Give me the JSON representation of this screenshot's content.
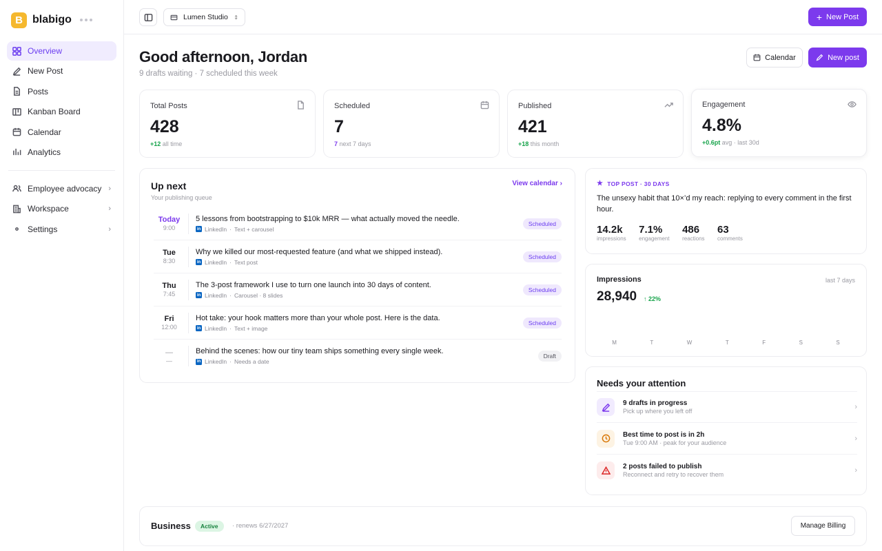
{
  "brand": {
    "name": "blabigo",
    "logo_letter": "B"
  },
  "sidebar": {
    "items": [
      {
        "label": "Overview",
        "icon": "grid-icon",
        "active": true
      },
      {
        "label": "New Post",
        "icon": "pen-icon"
      },
      {
        "label": "Posts",
        "icon": "document-icon"
      },
      {
        "label": "Kanban Board",
        "icon": "kanban-icon"
      },
      {
        "label": "Calendar",
        "icon": "calendar-icon"
      },
      {
        "label": "Analytics",
        "icon": "bar-chart-icon"
      }
    ],
    "groups": [
      {
        "label": "Employee advocacy",
        "icon": "people-icon"
      },
      {
        "label": "Workspace",
        "icon": "building-icon"
      },
      {
        "label": "Settings",
        "icon": "dot-icon"
      }
    ]
  },
  "topbar": {
    "workspace": "Lumen Studio",
    "new_post": "New Post"
  },
  "header": {
    "greeting": "Good afternoon, Jordan",
    "subtitle": "9 drafts waiting · 7 scheduled this week",
    "calendar_btn": "Calendar",
    "new_post_btn": "New post"
  },
  "stats": [
    {
      "label": "Total Posts",
      "value": "428",
      "delta": "+12",
      "delta_note": "all time",
      "icon": "file-icon"
    },
    {
      "label": "Scheduled",
      "value": "7",
      "delta": "7",
      "delta_note": "next 7 days",
      "icon": "calendar-icon"
    },
    {
      "label": "Published",
      "value": "421",
      "delta": "+18",
      "delta_note": "this month",
      "icon": "trend-up-icon"
    },
    {
      "label": "Engagement",
      "value": "4.8%",
      "delta": "+0.6pt",
      "delta_note": "avg · last 30d",
      "icon": "eye-icon"
    }
  ],
  "up_next": {
    "title": "Up next",
    "subtitle": "Your publishing queue",
    "view_calendar": "View calendar",
    "platform": "LinkedIn",
    "rows": [
      {
        "day": "Today",
        "time": "9:00",
        "title": "5 lessons from bootstrapping to $10k MRR — what actually moved the needle.",
        "meta": "Text + carousel",
        "status": "Scheduled"
      },
      {
        "day": "Tue",
        "time": "8:30",
        "title": "Why we killed our most-requested feature (and what we shipped instead).",
        "meta": "Text post",
        "status": "Scheduled"
      },
      {
        "day": "Thu",
        "time": "7:45",
        "title": "The 3-post framework I use to turn one launch into 30 days of content.",
        "meta": "Carousel · 8 slides",
        "status": "Scheduled"
      },
      {
        "day": "Fri",
        "time": "12:00",
        "title": "Hot take: your hook matters more than your whole post. Here is the data.",
        "meta": "Text + image",
        "status": "Scheduled"
      },
      {
        "day": "—",
        "time": "—",
        "title": "Behind the scenes: how our tiny team ships something every single week.",
        "meta": "Needs a date",
        "status": "Draft"
      }
    ]
  },
  "top_post": {
    "label": "TOP POST · 30 DAYS",
    "text": "The unsexy habit that 10×’d my reach: replying to every comment in the first hour.",
    "metrics": [
      {
        "value": "14.2k",
        "label": "impressions"
      },
      {
        "value": "7.1%",
        "label": "engagement"
      },
      {
        "value": "486",
        "label": "reactions"
      },
      {
        "value": "63",
        "label": "comments"
      }
    ]
  },
  "impressions": {
    "title": "Impressions",
    "period": "last 7 days",
    "value": "28,940",
    "change": "22%",
    "days": [
      "M",
      "T",
      "W",
      "T",
      "F",
      "S",
      "S"
    ]
  },
  "attention": {
    "title": "Needs your attention",
    "items": [
      {
        "title": "9 drafts in progress",
        "sub": "Pick up where you left off",
        "icon": "pen-icon",
        "color": "#7c3aed",
        "bg": "#f1ebfe"
      },
      {
        "title": "Best time to post is in 2h",
        "sub": "Tue 9:00 AM · peak for your audience",
        "icon": "clock-icon",
        "color": "#d97706",
        "bg": "#fdf3e3"
      },
      {
        "title": "2 posts failed to publish",
        "sub": "Reconnect and retry to recover them",
        "icon": "warning-icon",
        "color": "#dc2626",
        "bg": "#fdecec"
      }
    ]
  },
  "billing": {
    "plan": "Business",
    "status": "Active",
    "renews": "· renews 6/27/2027",
    "manage": "Manage Billing"
  },
  "colors": {
    "accent": "#7c3aed",
    "positive": "#16a34a",
    "active_bg": "#f0ecfe"
  }
}
